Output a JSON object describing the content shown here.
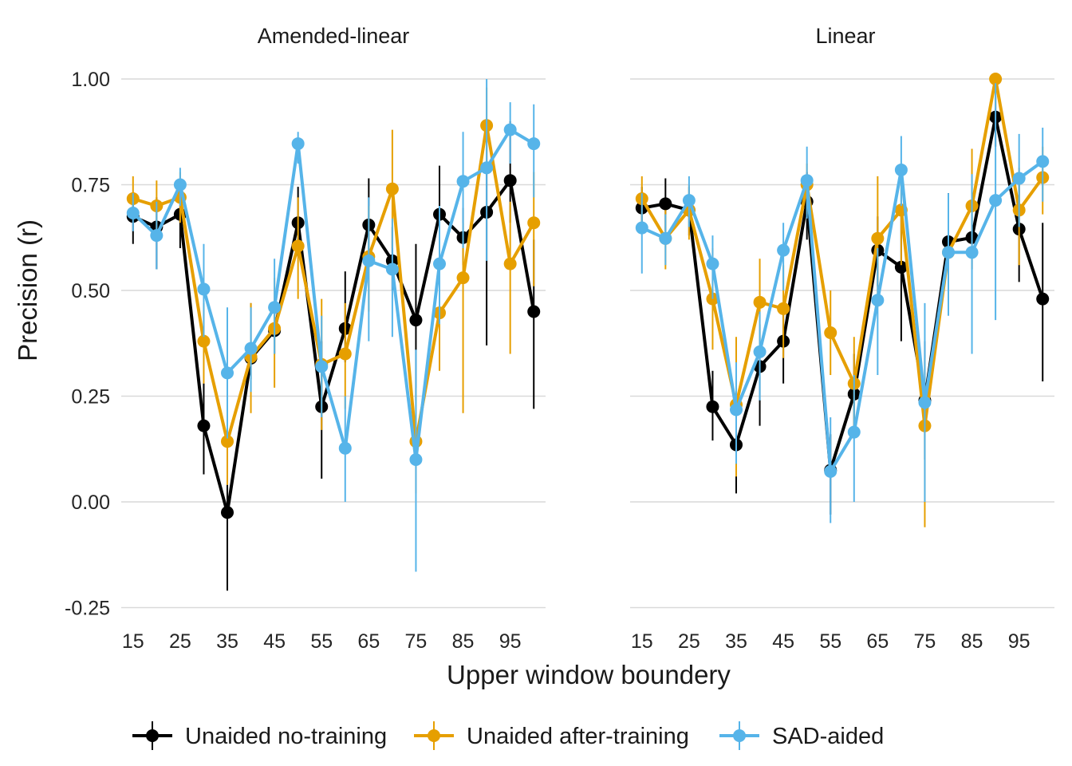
{
  "chart_data": {
    "type": "line",
    "ylabel": "Precision (r)",
    "xlabel": "Upper window boundery",
    "ylim": [
      -0.27,
      1.02
    ],
    "y_ticks": [
      -0.25,
      0.0,
      0.25,
      0.5,
      0.75,
      1.0
    ],
    "y_tick_labels": [
      "-0.25",
      "0.00",
      "0.25",
      "0.50",
      "0.75",
      "1.00"
    ],
    "x_ticks": [
      15,
      25,
      35,
      45,
      55,
      65,
      75,
      85,
      95
    ],
    "x_tick_labels": [
      "15",
      "25",
      "35",
      "45",
      "55",
      "65",
      "75",
      "85",
      "95"
    ],
    "x": [
      15,
      20,
      25,
      30,
      35,
      40,
      45,
      50,
      55,
      60,
      65,
      70,
      75,
      80,
      85,
      90,
      95,
      100
    ],
    "grid": true,
    "legend_position": "bottom",
    "legend_title": "",
    "series_styles": [
      {
        "name": "Unaided no-training",
        "color": "#000000"
      },
      {
        "name": "Unaided after-training",
        "color": "#E69F00"
      },
      {
        "name": "SAD-aided",
        "color": "#56B4E9"
      }
    ],
    "panels": [
      {
        "title": "Amended-linear",
        "series": [
          {
            "name": "Unaided no-training",
            "values": [
              0.675,
              0.65,
              0.68,
              0.18,
              -0.025,
              0.34,
              0.405,
              0.66,
              0.225,
              0.41,
              0.655,
              0.57,
              0.43,
              0.68,
              0.625,
              0.685,
              0.76,
              0.45
            ],
            "lower": [
              0.61,
              0.55,
              0.6,
              0.065,
              -0.21,
              0.29,
              0.35,
              0.58,
              0.055,
              0.33,
              0.56,
              0.5,
              0.24,
              0.6,
              0.56,
              0.37,
              0.66,
              0.22
            ],
            "upper": [
              0.72,
              0.72,
              0.745,
              0.28,
              0.1,
              0.47,
              0.46,
              0.745,
              0.38,
              0.545,
              0.765,
              0.65,
              0.61,
              0.795,
              0.695,
              0.87,
              0.9,
              0.62
            ]
          },
          {
            "name": "Unaided after-training",
            "values": [
              0.717,
              0.7,
              0.72,
              0.38,
              0.143,
              0.343,
              0.41,
              0.605,
              0.325,
              0.35,
              0.58,
              0.74,
              0.143,
              0.447,
              0.53,
              0.89,
              0.563,
              0.66
            ],
            "lower": [
              0.67,
              0.64,
              0.66,
              0.28,
              0.04,
              0.21,
              0.27,
              0.48,
              0.17,
              0.22,
              0.45,
              0.6,
              0.02,
              0.31,
              0.21,
              0.8,
              0.35,
              0.51
            ],
            "upper": [
              0.77,
              0.76,
              0.78,
              0.47,
              0.25,
              0.47,
              0.53,
              0.72,
              0.48,
              0.47,
              0.7,
              0.88,
              0.27,
              0.56,
              0.66,
              0.98,
              0.71,
              0.78
            ]
          },
          {
            "name": "SAD-aided",
            "values": [
              0.683,
              0.63,
              0.75,
              0.503,
              0.305,
              0.363,
              0.46,
              0.847,
              0.32,
              0.127,
              0.57,
              0.55,
              0.1,
              0.563,
              0.758,
              0.79,
              0.88,
              0.847
            ],
            "lower": [
              0.64,
              0.55,
              0.7,
              0.39,
              0.15,
              0.26,
              0.35,
              0.8,
              0.2,
              0.0,
              0.38,
              0.39,
              -0.165,
              0.42,
              0.6,
              0.57,
              0.8,
              0.72
            ],
            "upper": [
              0.73,
              0.71,
              0.79,
              0.61,
              0.46,
              0.46,
              0.575,
              0.875,
              0.44,
              0.25,
              0.72,
              0.67,
              0.36,
              0.7,
              0.875,
              1.0,
              0.945,
              0.94
            ]
          }
        ]
      },
      {
        "title": "Linear",
        "series": [
          {
            "name": "Unaided no-training",
            "values": [
              0.695,
              0.705,
              0.69,
              0.225,
              0.135,
              0.32,
              0.38,
              0.71,
              0.075,
              0.255,
              0.595,
              0.555,
              0.24,
              0.615,
              0.625,
              0.91,
              0.645,
              0.48
            ],
            "lower": [
              0.64,
              0.64,
              0.63,
              0.145,
              0.02,
              0.18,
              0.28,
              0.62,
              -0.03,
              0.16,
              0.51,
              0.38,
              0.1,
              0.52,
              0.55,
              0.84,
              0.52,
              0.285
            ],
            "upper": [
              0.745,
              0.765,
              0.745,
              0.31,
              0.23,
              0.42,
              0.47,
              0.78,
              0.16,
              0.35,
              0.675,
              0.7,
              0.38,
              0.73,
              0.72,
              0.96,
              0.75,
              0.66
            ]
          },
          {
            "name": "Unaided after-training",
            "values": [
              0.717,
              0.623,
              0.69,
              0.48,
              0.23,
              0.472,
              0.457,
              0.75,
              0.4,
              0.28,
              0.623,
              0.69,
              0.18,
              0.59,
              0.7,
              1.0,
              0.69,
              0.767
            ],
            "lower": [
              0.66,
              0.55,
              0.62,
              0.36,
              0.06,
              0.35,
              0.34,
              0.68,
              0.3,
              0.17,
              0.46,
              0.56,
              -0.06,
              0.46,
              0.55,
              0.93,
              0.56,
              0.68
            ],
            "upper": [
              0.77,
              0.69,
              0.75,
              0.6,
              0.39,
              0.575,
              0.56,
              0.8,
              0.5,
              0.39,
              0.77,
              0.79,
              0.34,
              0.7,
              0.835,
              1.0,
              0.79,
              0.84
            ]
          },
          {
            "name": "SAD-aided",
            "values": [
              0.648,
              0.623,
              0.713,
              0.563,
              0.218,
              0.355,
              0.595,
              0.76,
              0.072,
              0.165,
              0.477,
              0.785,
              0.235,
              0.59,
              0.59,
              0.713,
              0.765,
              0.805
            ],
            "lower": [
              0.54,
              0.56,
              0.65,
              0.48,
              0.09,
              0.24,
              0.5,
              0.67,
              -0.05,
              0.0,
              0.3,
              0.7,
              0.0,
              0.44,
              0.35,
              0.43,
              0.65,
              0.71
            ],
            "upper": [
              0.73,
              0.68,
              0.77,
              0.63,
              0.33,
              0.45,
              0.66,
              0.84,
              0.2,
              0.3,
              0.6,
              0.865,
              0.47,
              0.73,
              0.775,
              0.99,
              0.87,
              0.885
            ]
          }
        ]
      }
    ]
  }
}
